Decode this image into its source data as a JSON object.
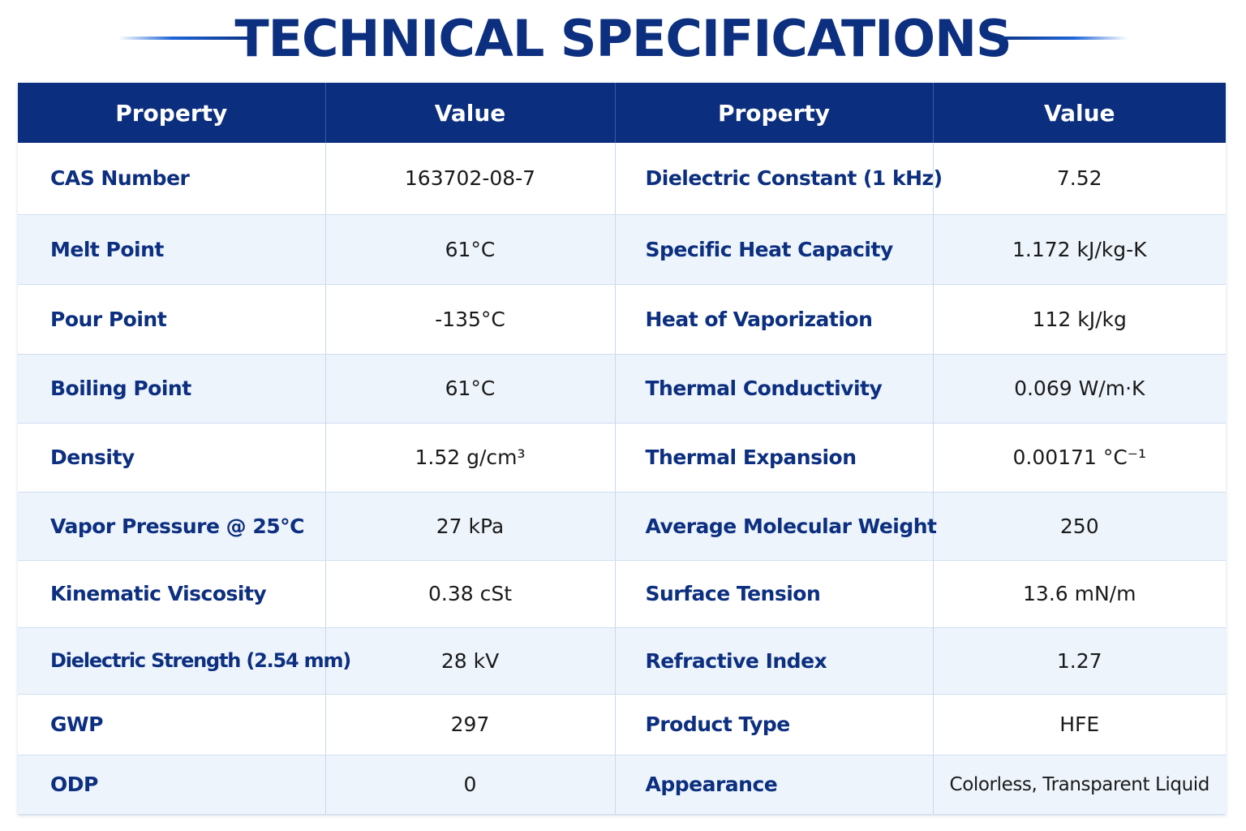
{
  "title": "TECHNICAL SPECIFICATIONS",
  "colors": {
    "header_bg": "#0b2e7f",
    "title_text": "#0c2f80",
    "row_alt": "#edf4fc",
    "accent_line": "#1f66d9"
  },
  "table": {
    "headers": [
      "Property",
      "Value",
      "Property",
      "Value"
    ],
    "rows": [
      {
        "left_property": "CAS Number",
        "left_value": "163702-08-7",
        "right_property": "Dielectric Constant (1 kHz)",
        "right_value": "7.52"
      },
      {
        "left_property": "Melt Point",
        "left_value": "61°C",
        "right_property": "Specific Heat Capacity",
        "right_value": "1.172 kJ/kg-K"
      },
      {
        "left_property": "Pour Point",
        "left_value": "-135°C",
        "right_property": "Heat of Vaporization",
        "right_value": "112 kJ/kg"
      },
      {
        "left_property": "Boiling Point",
        "left_value": "61°C",
        "right_property": "Thermal Conductivity",
        "right_value": "0.069 W/m·K"
      },
      {
        "left_property": "Density",
        "left_value": "1.52 g/cm³",
        "right_property": "Thermal Expansion",
        "right_value": "0.00171 °C⁻¹"
      },
      {
        "left_property": "Vapor Pressure @ 25°C",
        "left_value": "27 kPa",
        "right_property": "Average Molecular Weight",
        "right_value": "250"
      },
      {
        "left_property": "Kinematic Viscosity",
        "left_value": "0.38 cSt",
        "right_property": "Surface Tension",
        "right_value": "13.6 mN/m"
      },
      {
        "left_property": "Dielectric Strength (2.54 mm)",
        "left_value": "28 kV",
        "right_property": "Refractive Index",
        "right_value": "1.27"
      },
      {
        "left_property": "GWP",
        "left_value": "297",
        "right_property": "Product Type",
        "right_value": "HFE"
      },
      {
        "left_property": "ODP",
        "left_value": "0",
        "right_property": "Appearance",
        "right_value": "Colorless, Transparent Liquid"
      }
    ]
  }
}
